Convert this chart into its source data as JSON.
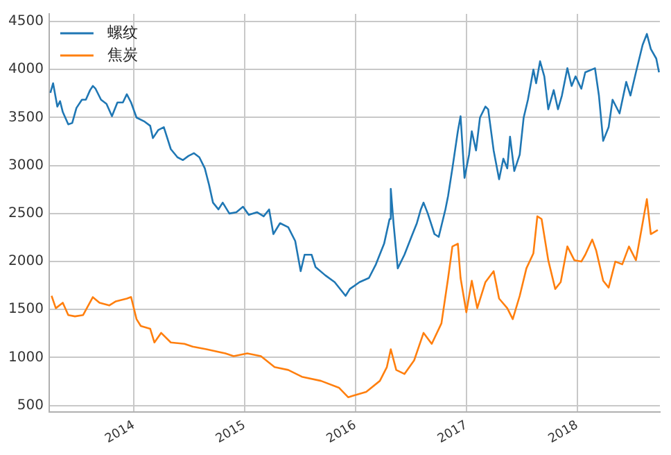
{
  "chart_data": {
    "type": "line",
    "legend": "top left",
    "grid": true,
    "marker": "none",
    "line_style": "solid",
    "xlim": [
      "2013-03-28",
      "2018-10-01"
    ],
    "xticks": [
      "2014",
      "2015",
      "2016",
      "2017",
      "2018"
    ],
    "ylim": [
      430,
      4580
    ],
    "yticks": [
      500,
      1000,
      1500,
      2000,
      2500,
      3000,
      3500,
      4000,
      4500
    ],
    "series": [
      {
        "name": "螺纹",
        "color": "#1f77b4",
        "x": [
          "2013-04-01",
          "2013-04-10",
          "2013-04-24",
          "2013-05-03",
          "2013-05-12",
          "2013-05-30",
          "2013-06-12",
          "2013-06-26",
          "2013-07-14",
          "2013-07-27",
          "2013-08-10",
          "2013-08-19",
          "2013-08-28",
          "2013-09-15",
          "2013-10-03",
          "2013-10-21",
          "2013-11-08",
          "2013-11-26",
          "2013-12-09",
          "2013-12-23",
          "2014-01-10",
          "2014-02-06",
          "2014-02-24",
          "2014-03-05",
          "2014-03-23",
          "2014-04-10",
          "2014-05-03",
          "2014-05-25",
          "2014-06-12",
          "2014-06-30",
          "2014-07-18",
          "2014-08-05",
          "2014-08-23",
          "2014-09-06",
          "2014-09-19",
          "2014-10-07",
          "2014-10-21",
          "2014-11-12",
          "2014-12-05",
          "2014-12-27",
          "2015-01-15",
          "2015-02-11",
          "2015-03-05",
          "2015-03-23",
          "2015-04-06",
          "2015-04-28",
          "2015-05-25",
          "2015-06-17",
          "2015-07-05",
          "2015-07-18",
          "2015-08-10",
          "2015-08-23",
          "2015-09-24",
          "2015-10-25",
          "2015-11-30",
          "2015-12-14",
          "2016-01-15",
          "2016-02-15",
          "2016-03-09",
          "2016-04-05",
          "2016-04-23",
          "2016-04-27",
          "2016-05-06",
          "2016-05-20",
          "2016-06-11",
          "2016-07-04",
          "2016-07-22",
          "2016-08-04",
          "2016-08-13",
          "2016-08-27",
          "2016-09-18",
          "2016-10-02",
          "2016-10-24",
          "2016-11-02",
          "2016-11-16",
          "2016-12-04",
          "2016-12-13",
          "2016-12-26",
          "2017-01-10",
          "2017-01-19",
          "2017-02-02",
          "2017-02-15",
          "2017-03-05",
          "2017-03-14",
          "2017-04-01",
          "2017-04-19",
          "2017-05-03",
          "2017-05-16",
          "2017-05-25",
          "2017-06-08",
          "2017-06-26",
          "2017-07-09",
          "2017-07-23",
          "2017-08-10",
          "2017-08-19",
          "2017-09-01",
          "2017-09-15",
          "2017-09-28",
          "2017-10-16",
          "2017-10-30",
          "2017-11-12",
          "2017-11-30",
          "2017-12-14",
          "2017-12-27",
          "2018-01-15",
          "2018-01-28",
          "2018-03-01",
          "2018-03-14",
          "2018-03-28",
          "2018-04-15",
          "2018-04-28",
          "2018-05-21",
          "2018-06-12",
          "2018-06-26",
          "2018-07-14",
          "2018-08-05",
          "2018-08-19",
          "2018-09-01",
          "2018-09-19",
          "2018-09-28"
        ],
        "values": [
          3757,
          3857,
          3614,
          3671,
          3557,
          3429,
          3443,
          3600,
          3686,
          3686,
          3786,
          3829,
          3800,
          3686,
          3643,
          3514,
          3657,
          3657,
          3743,
          3657,
          3500,
          3457,
          3414,
          3286,
          3371,
          3400,
          3171,
          3086,
          3057,
          3100,
          3129,
          3086,
          2971,
          2800,
          2614,
          2543,
          2614,
          2500,
          2514,
          2571,
          2486,
          2514,
          2471,
          2543,
          2286,
          2400,
          2357,
          2214,
          1900,
          2071,
          2071,
          1943,
          1857,
          1786,
          1643,
          1714,
          1786,
          1829,
          1971,
          2186,
          2443,
          2757,
          2400,
          1929,
          2071,
          2257,
          2400,
          2543,
          2614,
          2500,
          2286,
          2257,
          2543,
          2686,
          2971,
          3357,
          3514,
          2871,
          3114,
          3357,
          3157,
          3500,
          3614,
          3586,
          3157,
          2857,
          3071,
          2971,
          3300,
          2943,
          3114,
          3500,
          3686,
          4000,
          3857,
          4086,
          3929,
          3586,
          3786,
          3586,
          3729,
          4014,
          3829,
          3929,
          3800,
          3971,
          4014,
          3729,
          3257,
          3400,
          3686,
          3543,
          3871,
          3729,
          3971,
          4257,
          4371,
          4214,
          4114,
          3971
        ]
      },
      {
        "name": "焦炭",
        "color": "#ff7f0e",
        "x": [
          "2013-04-05",
          "2013-04-19",
          "2013-05-12",
          "2013-05-30",
          "2013-06-21",
          "2013-07-18",
          "2013-08-19",
          "2013-09-10",
          "2013-10-12",
          "2013-11-03",
          "2013-12-09",
          "2013-12-23",
          "2014-01-10",
          "2014-01-24",
          "2014-02-24",
          "2014-03-10",
          "2014-04-01",
          "2014-05-03",
          "2014-06-17",
          "2014-07-14",
          "2014-08-28",
          "2014-10-30",
          "2014-11-26",
          "2015-01-10",
          "2015-02-24",
          "2015-04-10",
          "2015-05-25",
          "2015-07-09",
          "2015-09-10",
          "2015-11-08",
          "2015-12-09",
          "2015-12-23",
          "2016-02-06",
          "2016-03-22",
          "2016-04-14",
          "2016-04-27",
          "2016-05-15",
          "2016-06-11",
          "2016-07-13",
          "2016-08-13",
          "2016-09-09",
          "2016-10-11",
          "2016-11-02",
          "2016-11-16",
          "2016-12-04",
          "2016-12-13",
          "2017-01-01",
          "2017-01-19",
          "2017-02-06",
          "2017-03-05",
          "2017-04-01",
          "2017-04-19",
          "2017-05-16",
          "2017-06-03",
          "2017-06-26",
          "2017-07-18",
          "2017-08-10",
          "2017-08-23",
          "2017-09-06",
          "2017-09-28",
          "2017-10-21",
          "2017-11-08",
          "2017-11-30",
          "2017-12-23",
          "2018-01-15",
          "2018-01-28",
          "2018-02-20",
          "2018-03-05",
          "2018-03-28",
          "2018-04-15",
          "2018-05-07",
          "2018-05-30",
          "2018-06-21",
          "2018-07-14",
          "2018-08-05",
          "2018-08-19",
          "2018-09-01",
          "2018-09-24"
        ],
        "values": [
          1643,
          1514,
          1571,
          1443,
          1429,
          1443,
          1629,
          1571,
          1543,
          1586,
          1614,
          1630,
          1400,
          1329,
          1300,
          1157,
          1257,
          1157,
          1143,
          1114,
          1086,
          1043,
          1014,
          1043,
          1014,
          900,
          871,
          800,
          757,
          686,
          586,
          600,
          643,
          757,
          900,
          1086,
          871,
          829,
          971,
          1257,
          1143,
          1357,
          1829,
          2157,
          2186,
          1829,
          1471,
          1800,
          1514,
          1786,
          1900,
          1614,
          1514,
          1400,
          1643,
          1929,
          2086,
          2471,
          2443,
          2014,
          1714,
          1786,
          2157,
          2014,
          2000,
          2071,
          2229,
          2114,
          1800,
          1729,
          2000,
          1971,
          2157,
          2014,
          2400,
          2650,
          2286,
          2329
        ]
      }
    ]
  }
}
